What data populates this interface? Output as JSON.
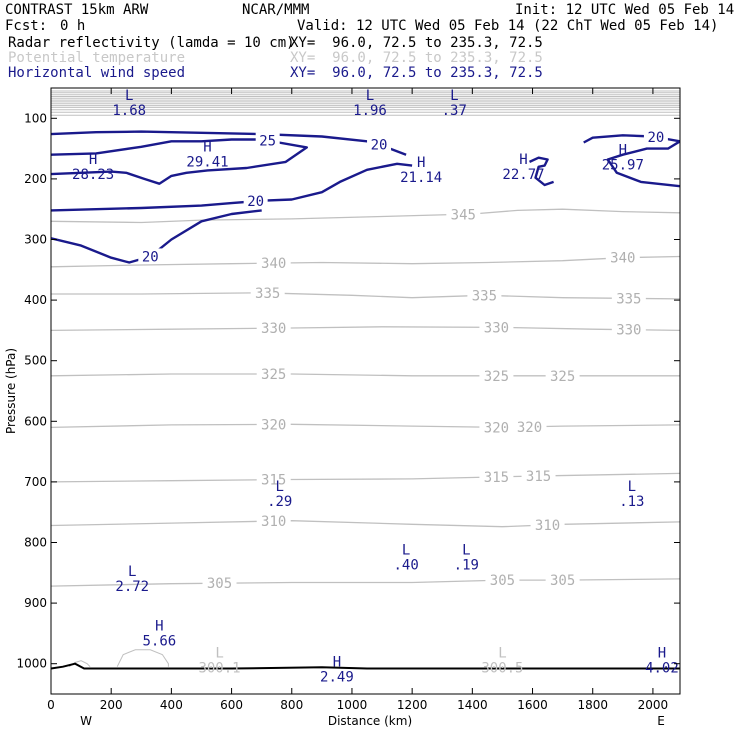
{
  "header": {
    "title": "CONTRAST 15km ARW",
    "center": "NCAR/MMM",
    "init": "Init: 12 UTC Wed 05 Feb 14",
    "fcst_label": "Fcst:",
    "fcst_value": "0 h",
    "valid": "Valid: 12 UTC Wed 05 Feb 14 (22 ChT Wed 05 Feb 14)",
    "fields": [
      {
        "name": "Radar reflectivity (lamda = 10 cm)",
        "xy": "XY=  96.0, 72.5 to 235.3, 72.5",
        "color": "#000000"
      },
      {
        "name": "Potential temperature",
        "xy": "XY=  96.0, 72.5 to 235.3, 72.5",
        "color": "#c8c8c8"
      },
      {
        "name": "Horizontal wind speed",
        "xy": "XY=  96.0, 72.5 to 235.3, 72.5",
        "color": "#1a1a8c"
      }
    ]
  },
  "chart_data": {
    "type": "line",
    "xlabel": "Distance (km)",
    "ylabel": "Pressure (hPa)",
    "xlim": [
      0,
      2090
    ],
    "ylim": [
      1050,
      50
    ],
    "x_ticks": [
      0,
      200,
      400,
      600,
      800,
      1000,
      1200,
      1400,
      1600,
      1800,
      2000
    ],
    "y_ticks": [
      100,
      200,
      300,
      400,
      500,
      600,
      700,
      800,
      900,
      1000
    ],
    "end_labels": {
      "left": "W",
      "right": "E"
    },
    "colors": {
      "theta": "#c0c0c0",
      "wind": "#1a1a8c",
      "terrain": "#000000"
    },
    "theta_contours": [
      {
        "value": "345",
        "label_x": 1370,
        "points": [
          [
            0,
            270
          ],
          [
            300,
            272
          ],
          [
            500,
            268
          ],
          [
            800,
            266
          ],
          [
            1100,
            262
          ],
          [
            1400,
            258
          ],
          [
            1550,
            252
          ],
          [
            1700,
            250
          ],
          [
            1900,
            254
          ],
          [
            2090,
            256
          ]
        ]
      },
      {
        "value": "340",
        "label_x": 740,
        "label_x2": 1900,
        "points": [
          [
            0,
            345
          ],
          [
            300,
            342
          ],
          [
            600,
            340
          ],
          [
            900,
            338
          ],
          [
            1200,
            340
          ],
          [
            1450,
            338
          ],
          [
            1700,
            335
          ],
          [
            1900,
            330
          ],
          [
            2090,
            328
          ]
        ]
      },
      {
        "value": "335",
        "label_x": 720,
        "label_x2": 1440,
        "label_x3": 1920,
        "points": [
          [
            0,
            390
          ],
          [
            300,
            390
          ],
          [
            700,
            388
          ],
          [
            1000,
            392
          ],
          [
            1200,
            396
          ],
          [
            1440,
            392
          ],
          [
            1700,
            396
          ],
          [
            2090,
            398
          ]
        ]
      },
      {
        "value": "330",
        "label_x": 740,
        "label_x2": 1480,
        "label_x3": 1920,
        "points": [
          [
            0,
            450
          ],
          [
            400,
            448
          ],
          [
            800,
            446
          ],
          [
            1100,
            444
          ],
          [
            1500,
            445
          ],
          [
            1800,
            448
          ],
          [
            2090,
            450
          ]
        ]
      },
      {
        "value": "325",
        "label_x": 740,
        "label_x2": 1480,
        "label_x3": 1700,
        "points": [
          [
            0,
            525
          ],
          [
            400,
            522
          ],
          [
            800,
            522
          ],
          [
            1200,
            525
          ],
          [
            1600,
            525
          ],
          [
            2090,
            525
          ]
        ]
      },
      {
        "value": "320",
        "label_x": 740,
        "label_x2": 1480,
        "label_x3": 1590,
        "points": [
          [
            0,
            610
          ],
          [
            400,
            606
          ],
          [
            800,
            605
          ],
          [
            1200,
            608
          ],
          [
            1500,
            610
          ],
          [
            1700,
            608
          ],
          [
            2090,
            606
          ]
        ]
      },
      {
        "value": "315",
        "label_x": 740,
        "label_x2": 1480,
        "label_x3": 1620,
        "points": [
          [
            0,
            700
          ],
          [
            400,
            698
          ],
          [
            800,
            696
          ],
          [
            1200,
            695
          ],
          [
            1450,
            692
          ],
          [
            1650,
            690
          ],
          [
            2090,
            686
          ]
        ]
      },
      {
        "value": "310",
        "label_x": 740,
        "label_x2": 1650,
        "points": [
          [
            0,
            772
          ],
          [
            400,
            768
          ],
          [
            800,
            764
          ],
          [
            1200,
            770
          ],
          [
            1500,
            774
          ],
          [
            1700,
            770
          ],
          [
            2090,
            766
          ]
        ]
      },
      {
        "value": "305",
        "label_x": 560,
        "label_x2": 1500,
        "label_x3": 1700,
        "points": [
          [
            0,
            872
          ],
          [
            400,
            868
          ],
          [
            800,
            866
          ],
          [
            1200,
            866
          ],
          [
            1500,
            862
          ],
          [
            1700,
            862
          ],
          [
            2090,
            860
          ]
        ]
      }
    ],
    "wind_contours": [
      {
        "value": "20",
        "points": [
          [
            0,
            252
          ],
          [
            150,
            250
          ],
          [
            300,
            248
          ],
          [
            500,
            244
          ],
          [
            600,
            240
          ],
          [
            700,
            236
          ],
          [
            800,
            234
          ],
          [
            900,
            222
          ],
          [
            960,
            205
          ],
          [
            1050,
            185
          ],
          [
            1150,
            175
          ],
          [
            1200,
            178
          ]
        ],
        "label_x": 680
      },
      {
        "value": "20",
        "points": [
          [
            0,
            298
          ],
          [
            100,
            310
          ],
          [
            200,
            330
          ],
          [
            260,
            338
          ],
          [
            330,
            328
          ],
          [
            400,
            300
          ],
          [
            500,
            270
          ],
          [
            600,
            258
          ],
          [
            700,
            252
          ]
        ],
        "label_x": 330
      },
      {
        "value": "20",
        "points": [
          [
            0,
            126
          ],
          [
            150,
            123
          ],
          [
            300,
            122
          ],
          [
            500,
            124
          ],
          [
            700,
            126
          ],
          [
            900,
            130
          ],
          [
            1050,
            138
          ],
          [
            1100,
            145
          ],
          [
            1180,
            160
          ]
        ],
        "label_x": 1090
      },
      {
        "value": "25",
        "points": [
          [
            0,
            160
          ],
          [
            150,
            158
          ],
          [
            300,
            147
          ],
          [
            400,
            138
          ],
          [
            500,
            138
          ],
          [
            600,
            135
          ],
          [
            700,
            135
          ],
          [
            850,
            148
          ],
          [
            780,
            172
          ],
          [
            650,
            182
          ],
          [
            520,
            186
          ],
          [
            450,
            190
          ],
          [
            400,
            195
          ],
          [
            360,
            208
          ],
          [
            310,
            200
          ],
          [
            250,
            190
          ],
          [
            200,
            188
          ],
          [
            100,
            190
          ],
          [
            0,
            192
          ]
        ],
        "label_x": 720
      },
      {
        "value": "20",
        "points": [
          [
            1770,
            140
          ],
          [
            1800,
            132
          ],
          [
            1900,
            128
          ],
          [
            2000,
            130
          ],
          [
            2090,
            138
          ],
          [
            2050,
            150
          ],
          [
            1980,
            150
          ],
          [
            1900,
            160
          ],
          [
            1850,
            168
          ],
          [
            1880,
            190
          ],
          [
            1960,
            205
          ],
          [
            2090,
            212
          ]
        ],
        "label_x": 2010
      },
      {
        "value": "20",
        "points": [
          [
            1590,
            172
          ],
          [
            1620,
            165
          ],
          [
            1650,
            168
          ],
          [
            1640,
            178
          ],
          [
            1620,
            180
          ],
          [
            1610,
            198
          ],
          [
            1640,
            210
          ],
          [
            1670,
            205
          ]
        ],
        "label_x": 0
      }
    ],
    "upper_region_top_contours": [
      55,
      58,
      61,
      64,
      67,
      70,
      73,
      76,
      79,
      82,
      86,
      90,
      95
    ],
    "extrema": [
      {
        "type": "L",
        "value": "1.68",
        "x": 260,
        "p": 70,
        "color": "#1a1a8c"
      },
      {
        "type": "L",
        "value": "1.96",
        "x": 1060,
        "p": 70,
        "color": "#1a1a8c"
      },
      {
        "type": "L",
        "value": ".37",
        "x": 1340,
        "p": 70,
        "color": "#1a1a8c"
      },
      {
        "type": "H",
        "value": "28.23",
        "x": 140,
        "p": 175,
        "color": "#1a1a8c"
      },
      {
        "type": "H",
        "value": "29.41",
        "x": 520,
        "p": 155,
        "color": "#1a1a8c"
      },
      {
        "type": "H",
        "value": "21.14",
        "x": 1230,
        "p": 180,
        "color": "#1a1a8c"
      },
      {
        "type": "H",
        "value": "22.77",
        "x": 1570,
        "p": 175,
        "color": "#1a1a8c"
      },
      {
        "type": "H",
        "value": "25.97",
        "x": 1900,
        "p": 160,
        "color": "#1a1a8c"
      },
      {
        "type": "L",
        "value": ".29",
        "x": 760,
        "p": 715,
        "color": "#1a1a8c"
      },
      {
        "type": "L",
        "value": ".13",
        "x": 1930,
        "p": 715,
        "color": "#1a1a8c"
      },
      {
        "type": "L",
        "value": ".40",
        "x": 1180,
        "p": 820,
        "color": "#1a1a8c"
      },
      {
        "type": "L",
        "value": ".19",
        "x": 1380,
        "p": 820,
        "color": "#1a1a8c"
      },
      {
        "type": "L",
        "value": "2.72",
        "x": 270,
        "p": 855,
        "color": "#1a1a8c"
      },
      {
        "type": "H",
        "value": "5.66",
        "x": 360,
        "p": 945,
        "color": "#1a1a8c"
      },
      {
        "type": "L",
        "value": "300.1",
        "x": 560,
        "p": 990,
        "color": "#c0c0c0"
      },
      {
        "type": "H",
        "value": "2.49",
        "x": 950,
        "p": 1005,
        "color": "#1a1a8c"
      },
      {
        "type": "L",
        "value": "300.5",
        "x": 1500,
        "p": 990,
        "color": "#c0c0c0"
      },
      {
        "type": "H",
        "value": "4.02",
        "x": 2030,
        "p": 990,
        "color": "#1a1a8c"
      }
    ],
    "terrain": [
      [
        0,
        1008
      ],
      [
        40,
        1005
      ],
      [
        80,
        1000
      ],
      [
        110,
        1008
      ],
      [
        200,
        1008
      ],
      [
        600,
        1008
      ],
      [
        900,
        1006
      ],
      [
        1050,
        1008
      ],
      [
        2090,
        1008
      ]
    ],
    "reflectivity_outlines": [
      [
        [
          220,
          1005
        ],
        [
          240,
          985
        ],
        [
          280,
          977
        ],
        [
          330,
          977
        ],
        [
          370,
          985
        ],
        [
          390,
          1000
        ],
        [
          390,
          1005
        ]
      ],
      [
        [
          60,
          1005
        ],
        [
          80,
          998
        ],
        [
          100,
          995
        ],
        [
          120,
          1000
        ],
        [
          130,
          1005
        ]
      ]
    ]
  }
}
